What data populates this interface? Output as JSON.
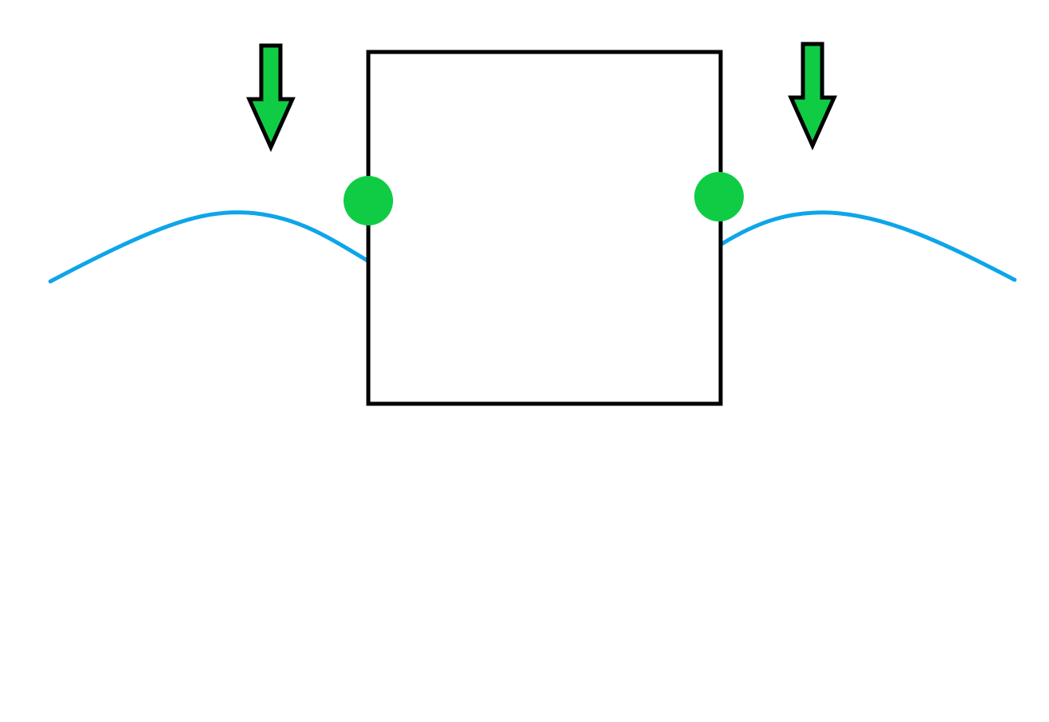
{
  "diagram": {
    "description_elements": [
      "box",
      "left-curve",
      "right-curve",
      "left-pivot",
      "right-pivot",
      "left-arrow",
      "right-arrow"
    ],
    "colors": {
      "background": "#ffffff",
      "box_stroke": "#000000",
      "curve": "#0ea5e9",
      "pivot_fill": "#10cc44",
      "arrow_fill": "#10cc44",
      "arrow_stroke": "#000000"
    },
    "arrows": [
      {
        "name": "left-arrow",
        "direction": "down"
      },
      {
        "name": "right-arrow",
        "direction": "down"
      }
    ],
    "pivots": [
      {
        "name": "left-pivot",
        "side": "left"
      },
      {
        "name": "right-pivot",
        "side": "right"
      }
    ]
  }
}
